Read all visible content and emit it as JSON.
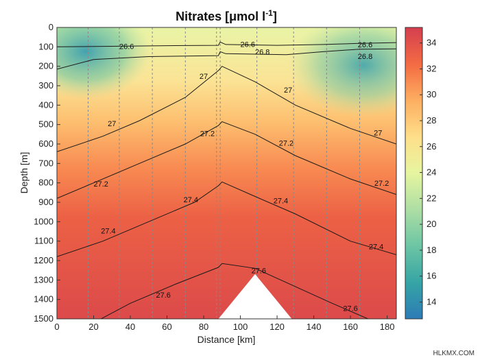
{
  "chart_data": {
    "type": "heatmap",
    "title": "Nitrates [μmol l",
    "title_superscript": "-1",
    "title_closing": "]",
    "xlabel": "Distance [km]",
    "ylabel": "Depth [m]",
    "xlim": [
      0,
      185
    ],
    "ylim": [
      0,
      1500
    ],
    "y_reversed": true,
    "x_ticks": [
      "0",
      "20",
      "40",
      "60",
      "80",
      "100",
      "120",
      "140",
      "160",
      "180"
    ],
    "y_ticks": [
      "0",
      "100",
      "200",
      "300",
      "400",
      "500",
      "600",
      "700",
      "800",
      "900",
      "1000",
      "1100",
      "1200",
      "1300",
      "1400",
      "1500"
    ],
    "colorbar": {
      "range": [
        12.7,
        35.2
      ],
      "ticks": [
        "14",
        "16",
        "18",
        "20",
        "22",
        "24",
        "26",
        "28",
        "30",
        "32",
        "34"
      ],
      "colormap": [
        "#2c7bb6",
        "#35a3a5",
        "#6cc5a4",
        "#abdda4",
        "#e6f5a0",
        "#fee08b",
        "#fdae61",
        "#f46d43",
        "#d53e4f"
      ]
    },
    "station_x_km": [
      17,
      34,
      52,
      70,
      87,
      89,
      109,
      129,
      147,
      165
    ],
    "seafloor": {
      "x": [
        88,
        108,
        128
      ],
      "depth": [
        1500,
        1270,
        1500
      ]
    },
    "contours": [
      {
        "level": "26.6",
        "points": [
          [
            0,
            100
          ],
          [
            30,
            97
          ],
          [
            60,
            94
          ],
          [
            88,
            92
          ],
          [
            89,
            75
          ],
          [
            92,
            88
          ],
          [
            120,
            92
          ],
          [
            145,
            88
          ],
          [
            165,
            82
          ],
          [
            185,
            78
          ]
        ],
        "labels": [
          [
            38,
            112
          ],
          [
            104,
            100
          ],
          [
            168,
            102
          ]
        ]
      },
      {
        "level": "26.8",
        "points": [
          [
            0,
            215
          ],
          [
            20,
            165
          ],
          [
            50,
            150
          ],
          [
            88,
            145
          ],
          [
            89,
            125
          ],
          [
            92,
            135
          ],
          [
            125,
            140
          ],
          [
            145,
            125
          ],
          [
            165,
            112
          ],
          [
            185,
            110
          ]
        ],
        "labels": [
          [
            112,
            140
          ],
          [
            168,
            163
          ]
        ]
      },
      {
        "level": "27",
        "points": [
          [
            0,
            640
          ],
          [
            25,
            560
          ],
          [
            45,
            480
          ],
          [
            70,
            360
          ],
          [
            88,
            222
          ],
          [
            90,
            200
          ],
          [
            108,
            280
          ],
          [
            130,
            400
          ],
          [
            160,
            520
          ],
          [
            185,
            600
          ]
        ],
        "labels": [
          [
            80,
            264
          ],
          [
            126,
            335
          ],
          [
            30,
            508
          ],
          [
            175,
            555
          ]
        ]
      },
      {
        "level": "27.2",
        "points": [
          [
            0,
            880
          ],
          [
            20,
            800
          ],
          [
            45,
            700
          ],
          [
            70,
            600
          ],
          [
            88,
            505
          ],
          [
            90,
            485
          ],
          [
            108,
            550
          ],
          [
            130,
            660
          ],
          [
            160,
            780
          ],
          [
            185,
            860
          ]
        ],
        "labels": [
          [
            82,
            560
          ],
          [
            125,
            608
          ],
          [
            24,
            818
          ],
          [
            177,
            815
          ]
        ]
      },
      {
        "level": "27.4",
        "points": [
          [
            0,
            1180
          ],
          [
            25,
            1100
          ],
          [
            50,
            1000
          ],
          [
            75,
            900
          ],
          [
            88,
            815
          ],
          [
            90,
            795
          ],
          [
            108,
            870
          ],
          [
            130,
            960
          ],
          [
            160,
            1100
          ],
          [
            185,
            1170
          ]
        ],
        "labels": [
          [
            73,
            900
          ],
          [
            122,
            905
          ],
          [
            28,
            1060
          ],
          [
            174,
            1142
          ]
        ]
      },
      {
        "level": "27.6",
        "points": [
          [
            20,
            1520
          ],
          [
            40,
            1420
          ],
          [
            65,
            1320
          ],
          [
            88,
            1235
          ],
          [
            90,
            1215
          ],
          [
            108,
            1240
          ],
          [
            122,
            1300
          ],
          [
            150,
            1420
          ],
          [
            172,
            1510
          ]
        ],
        "labels": [
          [
            58,
            1390
          ],
          [
            110,
            1265
          ],
          [
            160,
            1460
          ]
        ]
      }
    ]
  },
  "watermark": "HLKMX.COM"
}
